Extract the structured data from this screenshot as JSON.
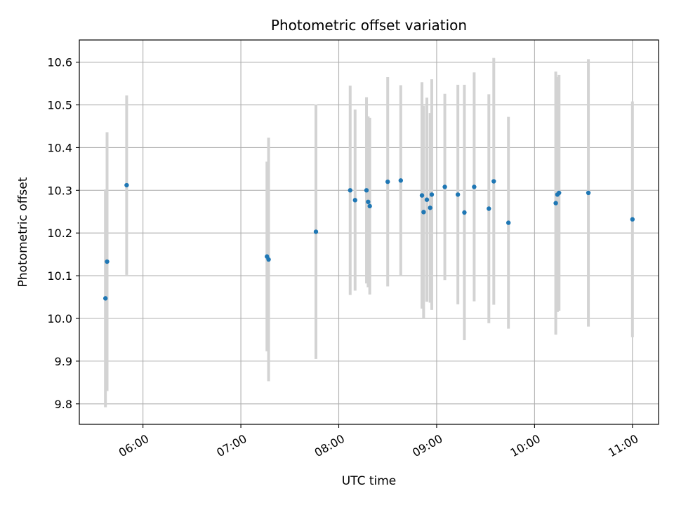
{
  "chart_data": {
    "type": "scatter",
    "title": "Photometric offset variation",
    "xlabel": "UTC time",
    "ylabel": "Photometric offset",
    "x_unit": "UTC time of day (HH:MM)",
    "xlim": [
      "05:21",
      "11:16"
    ],
    "ylim": [
      9.752,
      10.652
    ],
    "x_ticks": [
      "06:00",
      "07:00",
      "08:00",
      "09:00",
      "10:00",
      "11:00"
    ],
    "y_ticks": [
      9.8,
      9.9,
      10.0,
      10.1,
      10.2,
      10.3,
      10.4,
      10.5,
      10.6
    ],
    "y_tick_labels": [
      "9.8",
      "9.9",
      "10.0",
      "10.1",
      "10.2",
      "10.3",
      "10.4",
      "10.5",
      "10.6"
    ],
    "grid": true,
    "series": [
      {
        "marker_color": "#1f77b4",
        "errorbar_color": "#d3d3d3",
        "points": [
          {
            "x": "05:37",
            "y": 10.047,
            "yerr": 0.255
          },
          {
            "x": "05:38",
            "y": 10.133,
            "yerr": 0.303
          },
          {
            "x": "05:50",
            "y": 10.312,
            "yerr": 0.21
          },
          {
            "x": "07:16",
            "y": 10.145,
            "yerr": 0.222
          },
          {
            "x": "07:17",
            "y": 10.138,
            "yerr": 0.285
          },
          {
            "x": "07:46",
            "y": 10.203,
            "yerr": 0.298
          },
          {
            "x": "08:07",
            "y": 10.3,
            "yerr": 0.245
          },
          {
            "x": "08:10",
            "y": 10.277,
            "yerr": 0.212
          },
          {
            "x": "08:17",
            "y": 10.3,
            "yerr": 0.218
          },
          {
            "x": "08:18",
            "y": 10.273,
            "yerr": 0.2
          },
          {
            "x": "08:19",
            "y": 10.263,
            "yerr": 0.207
          },
          {
            "x": "08:30",
            "y": 10.32,
            "yerr": 0.245
          },
          {
            "x": "08:38",
            "y": 10.323,
            "yerr": 0.223
          },
          {
            "x": "08:51",
            "y": 10.288,
            "yerr": 0.265
          },
          {
            "x": "08:52",
            "y": 10.249,
            "yerr": 0.249
          },
          {
            "x": "08:54",
            "y": 10.278,
            "yerr": 0.239
          },
          {
            "x": "08:56",
            "y": 10.259,
            "yerr": 0.222
          },
          {
            "x": "08:57",
            "y": 10.29,
            "yerr": 0.27
          },
          {
            "x": "09:05",
            "y": 10.308,
            "yerr": 0.218
          },
          {
            "x": "09:13",
            "y": 10.29,
            "yerr": 0.257
          },
          {
            "x": "09:17",
            "y": 10.248,
            "yerr": 0.299
          },
          {
            "x": "09:23",
            "y": 10.308,
            "yerr": 0.268
          },
          {
            "x": "09:32",
            "y": 10.257,
            "yerr": 0.268
          },
          {
            "x": "09:35",
            "y": 10.321,
            "yerr": 0.289
          },
          {
            "x": "09:44",
            "y": 10.224,
            "yerr": 0.248
          },
          {
            "x": "10:13",
            "y": 10.27,
            "yerr": 0.308
          },
          {
            "x": "10:14",
            "y": 10.29,
            "yerr": 0.275
          },
          {
            "x": "10:15",
            "y": 10.294,
            "yerr": 0.276
          },
          {
            "x": "10:33",
            "y": 10.294,
            "yerr": 0.313
          },
          {
            "x": "11:00",
            "y": 10.232,
            "yerr": 0.276
          }
        ]
      }
    ]
  }
}
